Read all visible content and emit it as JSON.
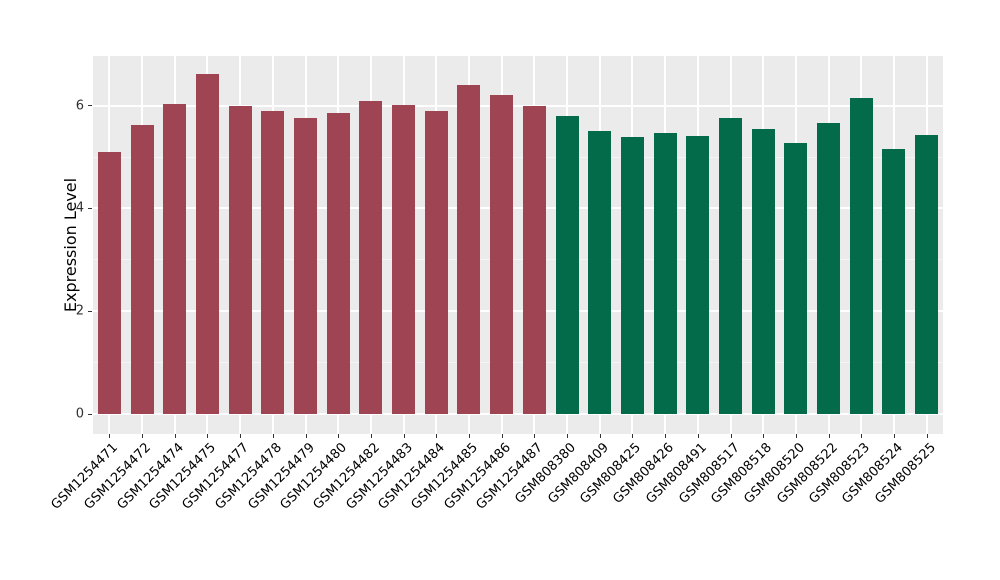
{
  "chart_data": {
    "type": "bar",
    "title": "",
    "xlabel": "",
    "ylabel": "Expression Level",
    "ylim": [
      0,
      6.96
    ],
    "yticks": [
      0,
      2,
      4,
      6
    ],
    "yticks_minor": [
      1,
      3,
      5
    ],
    "grid": "on",
    "legend": "none",
    "panel_background": "#EBEBEB",
    "grid_color": "#FFFFFF",
    "bar_width_fraction": 0.7,
    "series": [
      {
        "name": "group-1-maroon",
        "color": "#9E4452",
        "categories": [
          "GSM1254471",
          "GSM1254472",
          "GSM1254474",
          "GSM1254475",
          "GSM1254477",
          "GSM1254478",
          "GSM1254479",
          "GSM1254480",
          "GSM1254482",
          "GSM1254483",
          "GSM1254484",
          "GSM1254485",
          "GSM1254486",
          "GSM1254487"
        ],
        "values": [
          5.1,
          5.63,
          6.04,
          6.61,
          6.0,
          5.9,
          5.75,
          5.85,
          6.08,
          6.01,
          5.89,
          6.41,
          6.2,
          5.99
        ]
      },
      {
        "name": "group-2-green",
        "color": "#046B4A",
        "categories": [
          "GSM808380",
          "GSM808409",
          "GSM808425",
          "GSM808426",
          "GSM808491",
          "GSM808517",
          "GSM808518",
          "GSM808520",
          "GSM808522",
          "GSM808523",
          "GSM808524",
          "GSM808525"
        ],
        "values": [
          5.8,
          5.51,
          5.39,
          5.47,
          5.4,
          5.75,
          5.54,
          5.27,
          5.67,
          6.15,
          5.15,
          5.43
        ]
      }
    ]
  }
}
